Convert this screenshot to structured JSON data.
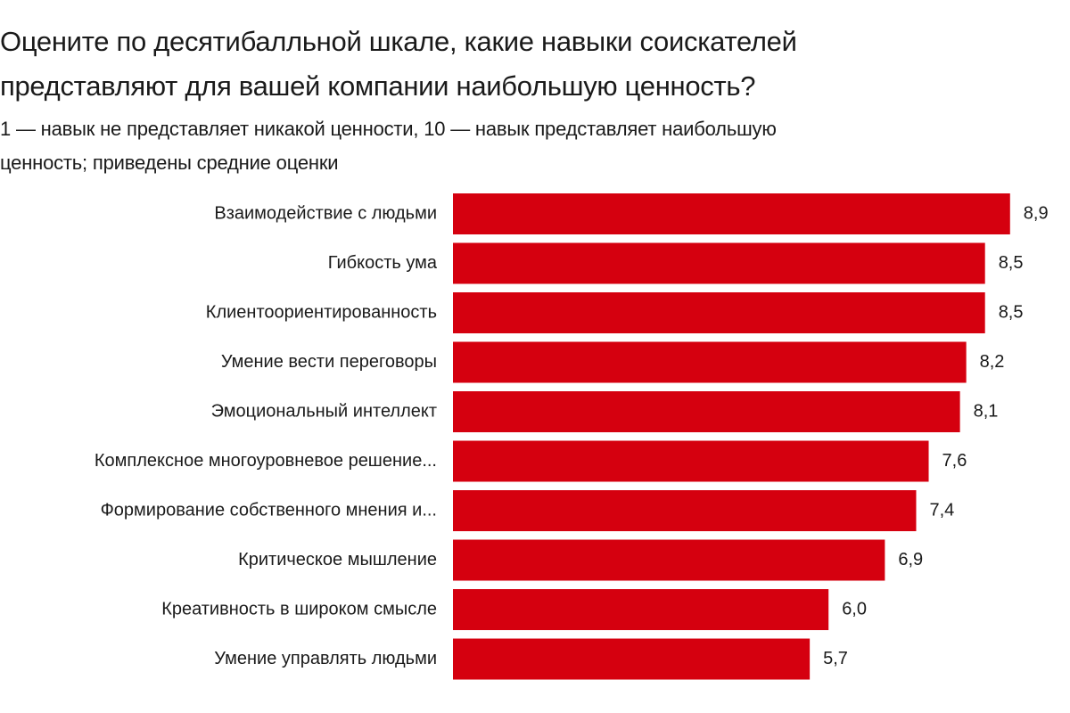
{
  "chart_data": {
    "type": "bar",
    "orientation": "horizontal",
    "title": "Оцените по десятибалльной шкале, какие навыки соискателей представляют для вашей компании наибольшую ценность?",
    "subtitle": "1 — навык не представляет никакой ценности, 10 — навык представляет наибольшую ценность; приведены средние оценки",
    "categories": [
      "Взаимодействие с людьми",
      "Гибкость ума",
      "Клиентоориентированность",
      "Умение вести переговоры",
      "Эмоциональный интеллект",
      "Комплексное многоуровневое решение...",
      "Формирование собственного мнения и...",
      "Критическое мышление",
      "Креативность в широком смысле",
      "Умение управлять людьми"
    ],
    "values": [
      8.9,
      8.5,
      8.5,
      8.2,
      8.1,
      7.6,
      7.4,
      6.9,
      6.0,
      5.7
    ],
    "value_labels": [
      "8,9",
      "8,5",
      "8,5",
      "8,2",
      "8,1",
      "7,6",
      "7,4",
      "6,9",
      "6,0",
      "5,7"
    ],
    "color": "#d5000f"
  }
}
